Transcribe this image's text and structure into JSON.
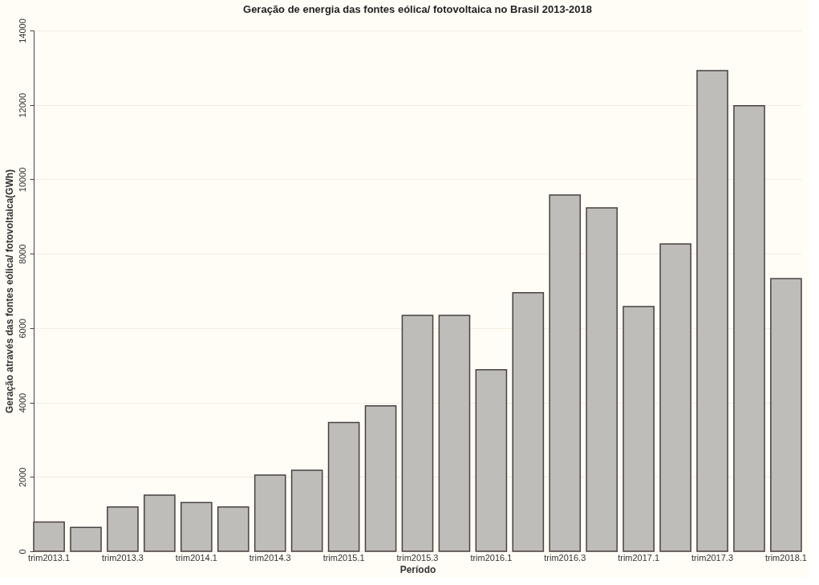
{
  "chart_data": {
    "type": "bar",
    "title": "Geração de energia das fontes eólica/ fotovoltaica no Brasil 2013-2018",
    "xlabel": "Período",
    "ylabel": "Geração através das fontes eólica/ fotovoltaica(GWh)",
    "categories": [
      "trim2013.1",
      null,
      "trim2013.3",
      null,
      "trim2014.1",
      null,
      "trim2014.3",
      null,
      "trim2015.1",
      null,
      "trim2015.3",
      null,
      "trim2016.1",
      null,
      "trim2016.3",
      null,
      "trim2017.1",
      null,
      "trim2017.3",
      null,
      "trim2018.1"
    ],
    "values": [
      790,
      640,
      1190,
      1510,
      1310,
      1190,
      2050,
      2180,
      3460,
      3910,
      6340,
      6340,
      4880,
      6950,
      9580,
      9230,
      6580,
      8260,
      12920,
      11980,
      7330
    ],
    "color": "#bebdb9",
    "ylim": [
      0,
      14000
    ],
    "yticks": [
      0,
      2000,
      4000,
      6000,
      8000,
      10000,
      12000,
      14000
    ],
    "grid": "y"
  }
}
